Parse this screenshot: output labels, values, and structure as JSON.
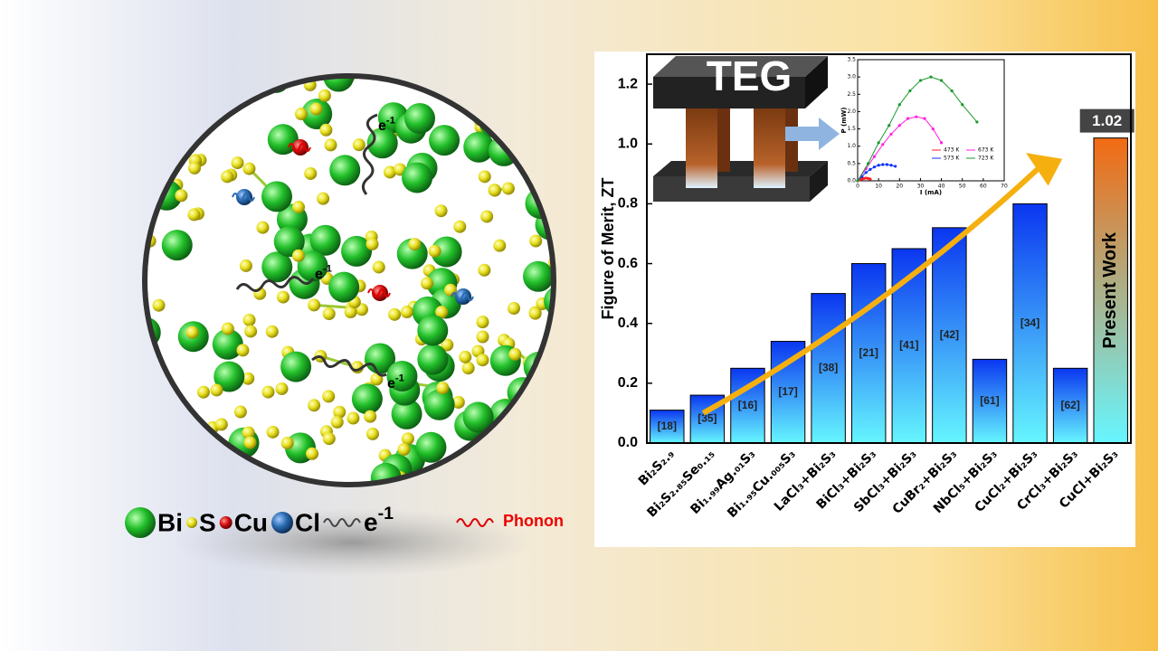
{
  "chart_data": [
    {
      "type": "bar",
      "y_label": "Figure of Merit, ZT",
      "categories": [
        "Bi₂S₂.₉",
        "Bi₂S₂.₈₅Se₀.₁₅",
        "Bi₁.₉₉Ag.₀₁S₃",
        "Bi₁.₉₅Cu.₀₀₅S₃",
        "LaCl₃+Bi₂S₃",
        "BiCl₃+Bi₂S₃",
        "SbCl₃+Bi₂S₃",
        "CuBr₂+Bi₂S₃",
        "NbCl₅+Bi₂S₃",
        "CuCl₂+Bi₂S₃",
        "CrCl₃+Bi₂S₃",
        "CuCl+Bi₂S₃"
      ],
      "values": [
        0.11,
        0.16,
        0.25,
        0.34,
        0.5,
        0.6,
        0.65,
        0.72,
        0.28,
        0.8,
        0.25,
        1.02
      ],
      "bar_labels": [
        "[18]",
        "[35]",
        "[16]",
        "[17]",
        "[38]",
        "[21]",
        "[41]",
        "[42]",
        "[61]",
        "[34]",
        "[62]",
        "Present Work"
      ],
      "color": "#0a36f0",
      "gradient_to": "#66f6ff",
      "highlight_color": "#f26a12",
      "ylim": [
        0,
        1.3
      ],
      "yticks": [
        {
          "value": 0,
          "label": "0.0"
        },
        0.2,
        0.4,
        0.6,
        0.8,
        {
          "value": 1,
          "label": "1.0"
        },
        1.2
      ]
    },
    {
      "type": "line",
      "x_label": "I (mA)",
      "y_label": "P (mW)",
      "xlim": [
        0,
        70
      ],
      "xticks": [
        0,
        10,
        20,
        30,
        40,
        50,
        60,
        70
      ],
      "ylim": [
        0,
        3.5
      ],
      "yticks": [
        {
          "value": 0,
          "label": "0.0"
        },
        0.5,
        {
          "value": 1,
          "label": "1.0"
        },
        1.5,
        {
          "value": 2,
          "label": "2.0"
        },
        2.5,
        {
          "value": 3,
          "label": "3.0"
        },
        3.5
      ],
      "series": [
        {
          "name": "473 K",
          "color": "#ff2020",
          "x": [
            0,
            1,
            2,
            3,
            4,
            5,
            6
          ],
          "values": [
            0,
            0.03,
            0.05,
            0.07,
            0.08,
            0.07,
            0.05
          ]
        },
        {
          "name": "573 K",
          "color": "#1030ff",
          "x": [
            0,
            2,
            4,
            6,
            8,
            10,
            12,
            14,
            16,
            18
          ],
          "values": [
            0,
            0.12,
            0.24,
            0.33,
            0.4,
            0.45,
            0.47,
            0.47,
            0.45,
            0.42
          ]
        },
        {
          "name": "673 K",
          "color": "#ff20e0",
          "x": [
            0,
            4,
            8,
            12,
            16,
            20,
            24,
            28,
            32,
            36,
            40
          ],
          "values": [
            0,
            0.35,
            0.7,
            1.05,
            1.35,
            1.6,
            1.8,
            1.85,
            1.8,
            1.5,
            1.1
          ]
        },
        {
          "name": "723 K",
          "color": "#1a9a2a",
          "x": [
            0,
            5,
            10,
            15,
            20,
            25,
            30,
            35,
            40,
            45,
            50,
            57
          ],
          "values": [
            0,
            0.5,
            1.1,
            1.6,
            2.2,
            2.6,
            2.9,
            3.0,
            2.9,
            2.6,
            2.2,
            1.7
          ]
        }
      ]
    }
  ],
  "teg_label": "TEG",
  "legend": {
    "items": [
      "Bi",
      "S",
      "Cu",
      "Cl"
    ],
    "electron": {
      "base": "e",
      "sup": "-1"
    },
    "phonon": "Phonon"
  }
}
